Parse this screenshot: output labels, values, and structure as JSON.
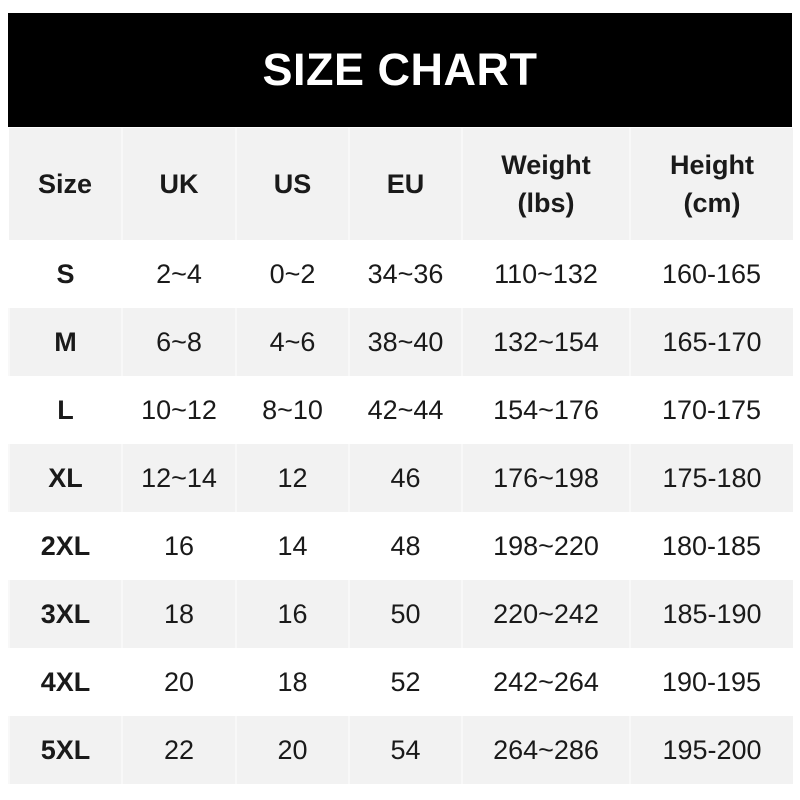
{
  "title": "SIZE CHART",
  "headers": [
    "Size",
    "UK",
    "US",
    "EU",
    "Weight\n(lbs)",
    "Height\n(cm)"
  ],
  "header_lines": {
    "size": "Size",
    "uk": "UK",
    "us": "US",
    "eu": "EU",
    "weight_1": "Weight",
    "weight_2": "(lbs)",
    "height_1": "Height",
    "height_2": "(cm)"
  },
  "rows": [
    [
      "S",
      "2~4",
      "0~2",
      "34~36",
      "110~132",
      "160-165"
    ],
    [
      "M",
      "6~8",
      "4~6",
      "38~40",
      "132~154",
      "165-170"
    ],
    [
      "L",
      "10~12",
      "8~10",
      "42~44",
      "154~176",
      "170-175"
    ],
    [
      "XL",
      "12~14",
      "12",
      "46",
      "176~198",
      "175-180"
    ],
    [
      "2XL",
      "16",
      "14",
      "48",
      "198~220",
      "180-185"
    ],
    [
      "3XL",
      "18",
      "16",
      "50",
      "220~242",
      "185-190"
    ],
    [
      "4XL",
      "20",
      "18",
      "52",
      "242~264",
      "190-195"
    ],
    [
      "5XL",
      "22",
      "20",
      "54",
      "264~286",
      "195-200"
    ]
  ],
  "colors": {
    "title_bg": "#000000",
    "title_text": "#ffffff",
    "stripe": "#f2f2f2"
  }
}
